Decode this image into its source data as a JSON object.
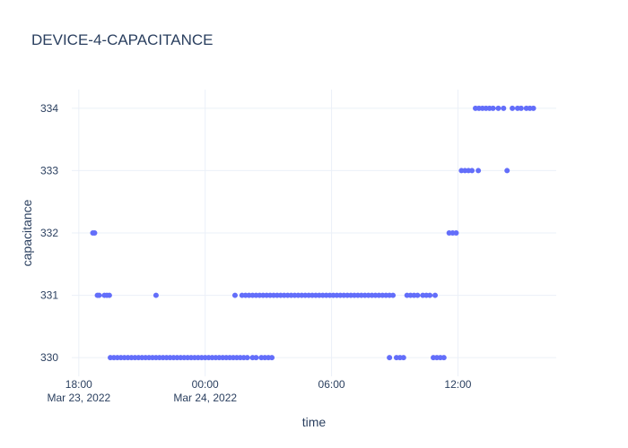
{
  "chart_data": {
    "type": "scatter",
    "title": "DEVICE-4-CAPACITANCE",
    "xlabel": "time",
    "ylabel": "capacitance",
    "xlim": [
      "2022-03-23 17:40",
      "2022-03-24 16:40"
    ],
    "ylim": [
      329.7,
      334.3
    ],
    "y_ticks": [
      330,
      331,
      332,
      333,
      334
    ],
    "x_ticks": [
      {
        "t": "2022-03-23 18:00",
        "label": "18:00",
        "sublabel": "Mar 23, 2022"
      },
      {
        "t": "2022-03-24 00:00",
        "label": "00:00",
        "sublabel": "Mar 24, 2022"
      },
      {
        "t": "2022-03-24 06:00",
        "label": "06:00",
        "sublabel": ""
      },
      {
        "t": "2022-03-24 12:00",
        "label": "12:00",
        "sublabel": ""
      }
    ],
    "marker_color": "#636efa",
    "grid": true,
    "series": [
      {
        "name": "",
        "points": [
          {
            "x": "2022-03-23 18:40",
            "y": 332
          },
          {
            "x": "2022-03-23 18:45",
            "y": 332
          },
          {
            "x": "2022-03-23 18:53",
            "y": 331
          },
          {
            "x": "2022-03-23 18:58",
            "y": 331
          },
          {
            "x": "2022-03-23 19:13",
            "y": 331
          },
          {
            "x": "2022-03-23 19:20",
            "y": 331
          },
          {
            "x": "2022-03-23 19:27",
            "y": 331
          },
          {
            "x": "2022-03-23 19:30",
            "y": 330
          },
          {
            "x": "2022-03-23 19:40",
            "y": 330
          },
          {
            "x": "2022-03-23 19:50",
            "y": 330
          },
          {
            "x": "2022-03-23 20:00",
            "y": 330
          },
          {
            "x": "2022-03-23 20:10",
            "y": 330
          },
          {
            "x": "2022-03-23 20:20",
            "y": 330
          },
          {
            "x": "2022-03-23 20:30",
            "y": 330
          },
          {
            "x": "2022-03-23 20:40",
            "y": 330
          },
          {
            "x": "2022-03-23 20:50",
            "y": 330
          },
          {
            "x": "2022-03-23 21:00",
            "y": 330
          },
          {
            "x": "2022-03-23 21:10",
            "y": 330
          },
          {
            "x": "2022-03-23 21:20",
            "y": 330
          },
          {
            "x": "2022-03-23 21:30",
            "y": 330
          },
          {
            "x": "2022-03-23 21:40",
            "y": 330
          },
          {
            "x": "2022-03-23 21:50",
            "y": 330
          },
          {
            "x": "2022-03-23 22:00",
            "y": 330
          },
          {
            "x": "2022-03-23 22:10",
            "y": 330
          },
          {
            "x": "2022-03-23 22:20",
            "y": 330
          },
          {
            "x": "2022-03-23 22:30",
            "y": 330
          },
          {
            "x": "2022-03-23 22:40",
            "y": 330
          },
          {
            "x": "2022-03-23 22:50",
            "y": 330
          },
          {
            "x": "2022-03-23 23:00",
            "y": 330
          },
          {
            "x": "2022-03-23 23:10",
            "y": 330
          },
          {
            "x": "2022-03-23 23:20",
            "y": 330
          },
          {
            "x": "2022-03-23 23:30",
            "y": 330
          },
          {
            "x": "2022-03-23 23:40",
            "y": 330
          },
          {
            "x": "2022-03-23 23:50",
            "y": 330
          },
          {
            "x": "2022-03-24 00:00",
            "y": 330
          },
          {
            "x": "2022-03-24 00:10",
            "y": 330
          },
          {
            "x": "2022-03-24 00:20",
            "y": 330
          },
          {
            "x": "2022-03-24 00:30",
            "y": 330
          },
          {
            "x": "2022-03-24 00:40",
            "y": 330
          },
          {
            "x": "2022-03-24 00:50",
            "y": 330
          },
          {
            "x": "2022-03-24 01:00",
            "y": 330
          },
          {
            "x": "2022-03-24 01:10",
            "y": 330
          },
          {
            "x": "2022-03-24 01:20",
            "y": 330
          },
          {
            "x": "2022-03-24 01:30",
            "y": 330
          },
          {
            "x": "2022-03-24 01:40",
            "y": 330
          },
          {
            "x": "2022-03-24 01:50",
            "y": 330
          },
          {
            "x": "2022-03-24 02:00",
            "y": 330
          },
          {
            "x": "2022-03-23 21:40",
            "y": 331
          },
          {
            "x": "2022-03-24 01:25",
            "y": 331
          },
          {
            "x": "2022-03-24 01:45",
            "y": 331
          },
          {
            "x": "2022-03-24 01:55",
            "y": 331
          },
          {
            "x": "2022-03-24 02:05",
            "y": 331
          },
          {
            "x": "2022-03-24 02:15",
            "y": 331
          },
          {
            "x": "2022-03-24 02:25",
            "y": 331
          },
          {
            "x": "2022-03-24 02:35",
            "y": 331
          },
          {
            "x": "2022-03-24 02:45",
            "y": 331
          },
          {
            "x": "2022-03-24 02:55",
            "y": 331
          },
          {
            "x": "2022-03-24 03:05",
            "y": 331
          },
          {
            "x": "2022-03-24 03:15",
            "y": 331
          },
          {
            "x": "2022-03-24 03:25",
            "y": 331
          },
          {
            "x": "2022-03-24 03:35",
            "y": 331
          },
          {
            "x": "2022-03-24 03:45",
            "y": 331
          },
          {
            "x": "2022-03-24 03:55",
            "y": 331
          },
          {
            "x": "2022-03-24 04:05",
            "y": 331
          },
          {
            "x": "2022-03-24 04:15",
            "y": 331
          },
          {
            "x": "2022-03-24 04:25",
            "y": 331
          },
          {
            "x": "2022-03-24 04:35",
            "y": 331
          },
          {
            "x": "2022-03-24 04:45",
            "y": 331
          },
          {
            "x": "2022-03-24 04:55",
            "y": 331
          },
          {
            "x": "2022-03-24 05:05",
            "y": 331
          },
          {
            "x": "2022-03-24 05:15",
            "y": 331
          },
          {
            "x": "2022-03-24 05:25",
            "y": 331
          },
          {
            "x": "2022-03-24 05:35",
            "y": 331
          },
          {
            "x": "2022-03-24 05:45",
            "y": 331
          },
          {
            "x": "2022-03-24 05:55",
            "y": 331
          },
          {
            "x": "2022-03-24 06:05",
            "y": 331
          },
          {
            "x": "2022-03-24 06:15",
            "y": 331
          },
          {
            "x": "2022-03-24 06:25",
            "y": 331
          },
          {
            "x": "2022-03-24 06:35",
            "y": 331
          },
          {
            "x": "2022-03-24 06:45",
            "y": 331
          },
          {
            "x": "2022-03-24 06:55",
            "y": 331
          },
          {
            "x": "2022-03-24 07:05",
            "y": 331
          },
          {
            "x": "2022-03-24 07:15",
            "y": 331
          },
          {
            "x": "2022-03-24 07:25",
            "y": 331
          },
          {
            "x": "2022-03-24 07:35",
            "y": 331
          },
          {
            "x": "2022-03-24 07:45",
            "y": 331
          },
          {
            "x": "2022-03-24 07:55",
            "y": 331
          },
          {
            "x": "2022-03-24 08:05",
            "y": 331
          },
          {
            "x": "2022-03-24 08:15",
            "y": 331
          },
          {
            "x": "2022-03-24 08:25",
            "y": 331
          },
          {
            "x": "2022-03-24 08:35",
            "y": 331
          },
          {
            "x": "2022-03-24 08:45",
            "y": 331
          },
          {
            "x": "2022-03-24 08:55",
            "y": 331
          },
          {
            "x": "2022-03-24 02:15",
            "y": 330
          },
          {
            "x": "2022-03-24 02:25",
            "y": 330
          },
          {
            "x": "2022-03-24 02:40",
            "y": 330
          },
          {
            "x": "2022-03-24 02:50",
            "y": 330
          },
          {
            "x": "2022-03-24 03:00",
            "y": 330
          },
          {
            "x": "2022-03-24 03:10",
            "y": 330
          },
          {
            "x": "2022-03-24 08:45",
            "y": 330
          },
          {
            "x": "2022-03-24 09:05",
            "y": 330
          },
          {
            "x": "2022-03-24 09:15",
            "y": 330
          },
          {
            "x": "2022-03-24 09:25",
            "y": 330
          },
          {
            "x": "2022-03-24 09:35",
            "y": 331
          },
          {
            "x": "2022-03-24 09:45",
            "y": 331
          },
          {
            "x": "2022-03-24 09:55",
            "y": 331
          },
          {
            "x": "2022-03-24 10:05",
            "y": 331
          },
          {
            "x": "2022-03-24 10:20",
            "y": 331
          },
          {
            "x": "2022-03-24 10:30",
            "y": 331
          },
          {
            "x": "2022-03-24 10:40",
            "y": 331
          },
          {
            "x": "2022-03-24 10:55",
            "y": 331
          },
          {
            "x": "2022-03-24 10:50",
            "y": 330
          },
          {
            "x": "2022-03-24 11:00",
            "y": 330
          },
          {
            "x": "2022-03-24 11:10",
            "y": 330
          },
          {
            "x": "2022-03-24 11:20",
            "y": 330
          },
          {
            "x": "2022-03-24 11:35",
            "y": 332
          },
          {
            "x": "2022-03-24 11:45",
            "y": 332
          },
          {
            "x": "2022-03-24 11:55",
            "y": 332
          },
          {
            "x": "2022-03-24 12:10",
            "y": 333
          },
          {
            "x": "2022-03-24 12:20",
            "y": 333
          },
          {
            "x": "2022-03-24 12:30",
            "y": 333
          },
          {
            "x": "2022-03-24 12:40",
            "y": 333
          },
          {
            "x": "2022-03-24 12:58",
            "y": 333
          },
          {
            "x": "2022-03-24 14:20",
            "y": 333
          },
          {
            "x": "2022-03-24 12:50",
            "y": 334
          },
          {
            "x": "2022-03-24 13:00",
            "y": 334
          },
          {
            "x": "2022-03-24 13:10",
            "y": 334
          },
          {
            "x": "2022-03-24 13:20",
            "y": 334
          },
          {
            "x": "2022-03-24 13:30",
            "y": 334
          },
          {
            "x": "2022-03-24 13:40",
            "y": 334
          },
          {
            "x": "2022-03-24 13:55",
            "y": 334
          },
          {
            "x": "2022-03-24 14:10",
            "y": 334
          },
          {
            "x": "2022-03-24 14:35",
            "y": 334
          },
          {
            "x": "2022-03-24 14:50",
            "y": 334
          },
          {
            "x": "2022-03-24 15:00",
            "y": 334
          },
          {
            "x": "2022-03-24 15:15",
            "y": 334
          },
          {
            "x": "2022-03-24 15:25",
            "y": 334
          },
          {
            "x": "2022-03-24 15:35",
            "y": 334
          }
        ]
      }
    ]
  }
}
